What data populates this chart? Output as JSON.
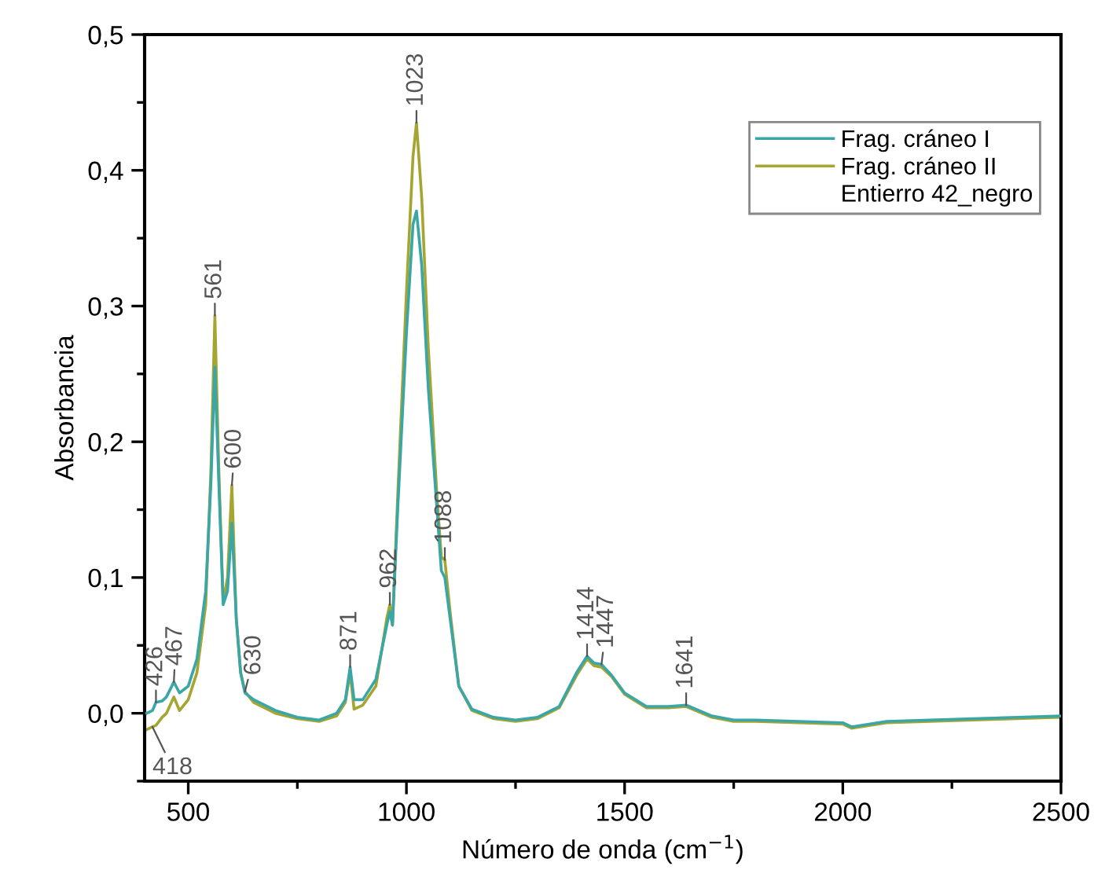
{
  "chart_data": {
    "type": "line",
    "xlabel": "Número de onda (cm$^{−1}$)",
    "ylabel": "Absorbancia",
    "xlim": [
      400,
      2500
    ],
    "ylim": [
      -0.05,
      0.5
    ],
    "xticks": [
      {
        "value": 500,
        "label": "500"
      },
      {
        "value": 750,
        "label": null
      },
      {
        "value": 1000,
        "label": "1000"
      },
      {
        "value": 1250,
        "label": null
      },
      {
        "value": 1500,
        "label": "1500"
      },
      {
        "value": 1750,
        "label": null
      },
      {
        "value": 2000,
        "label": "2000"
      },
      {
        "value": 2250,
        "label": null
      },
      {
        "value": 2500,
        "label": "2500"
      }
    ],
    "yticks": [
      {
        "value": -0.05,
        "label": null
      },
      {
        "value": 0.0,
        "label": "0,0"
      },
      {
        "value": 0.05,
        "label": null
      },
      {
        "value": 0.1,
        "label": "0,1"
      },
      {
        "value": 0.15,
        "label": null
      },
      {
        "value": 0.2,
        "label": "0,2"
      },
      {
        "value": 0.25,
        "label": null
      },
      {
        "value": 0.3,
        "label": "0,3"
      },
      {
        "value": 0.35,
        "label": null
      },
      {
        "value": 0.4,
        "label": "0,4"
      },
      {
        "value": 0.45,
        "label": null
      },
      {
        "value": 0.5,
        "label": "0,5"
      }
    ],
    "x": [
      405,
      418,
      426,
      440,
      450,
      467,
      480,
      500,
      520,
      540,
      552,
      561,
      570,
      580,
      590,
      600,
      610,
      620,
      630,
      650,
      700,
      750,
      800,
      840,
      860,
      871,
      880,
      900,
      930,
      955,
      962,
      968,
      980,
      1000,
      1015,
      1023,
      1035,
      1050,
      1070,
      1080,
      1088,
      1100,
      1120,
      1150,
      1200,
      1250,
      1300,
      1350,
      1390,
      1414,
      1430,
      1447,
      1470,
      1500,
      1550,
      1600,
      1641,
      1700,
      1750,
      1800,
      1900,
      2000,
      2020,
      2100,
      2200,
      2300,
      2400,
      2500
    ],
    "series": [
      {
        "name": "Frag. cráneo I",
        "color": "#3aa6a6",
        "values": [
          0.0,
          0.002,
          0.008,
          0.009,
          0.012,
          0.023,
          0.015,
          0.02,
          0.04,
          0.09,
          0.17,
          0.255,
          0.17,
          0.08,
          0.09,
          0.14,
          0.07,
          0.03,
          0.015,
          0.01,
          0.002,
          -0.003,
          -0.005,
          0.0,
          0.01,
          0.034,
          0.01,
          0.01,
          0.025,
          0.065,
          0.075,
          0.065,
          0.15,
          0.28,
          0.36,
          0.37,
          0.33,
          0.24,
          0.15,
          0.105,
          0.1,
          0.07,
          0.02,
          0.003,
          -0.003,
          -0.005,
          -0.003,
          0.005,
          0.03,
          0.042,
          0.037,
          0.036,
          0.028,
          0.015,
          0.005,
          0.005,
          0.006,
          -0.002,
          -0.005,
          -0.005,
          -0.006,
          -0.007,
          -0.01,
          -0.006,
          -0.005,
          -0.004,
          -0.003,
          -0.002
        ]
      },
      {
        "name": "Frag. cráneo II",
        "color": "#a5a532",
        "values": [
          -0.012,
          -0.01,
          -0.009,
          -0.003,
          0.0,
          0.012,
          0.002,
          0.01,
          0.03,
          0.08,
          0.18,
          0.293,
          0.18,
          0.082,
          0.1,
          0.168,
          0.07,
          0.03,
          0.016,
          0.008,
          0.0,
          -0.004,
          -0.006,
          -0.002,
          0.008,
          0.03,
          0.003,
          0.006,
          0.02,
          0.07,
          0.08,
          0.065,
          0.16,
          0.31,
          0.41,
          0.435,
          0.38,
          0.27,
          0.16,
          0.115,
          0.113,
          0.075,
          0.02,
          0.002,
          -0.004,
          -0.006,
          -0.004,
          0.004,
          0.028,
          0.04,
          0.035,
          0.034,
          0.027,
          0.014,
          0.004,
          0.004,
          0.005,
          -0.003,
          -0.006,
          -0.006,
          -0.007,
          -0.008,
          -0.011,
          -0.007,
          -0.006,
          -0.005,
          -0.004,
          -0.003
        ]
      }
    ],
    "annotations": [
      "Entierro 42_negro",
      {
        "text": "418",
        "x": 418,
        "y": -0.01
      },
      {
        "text": "426",
        "x": 426,
        "y": 0.008
      },
      {
        "text": "467",
        "x": 467,
        "y": 0.023
      },
      {
        "text": "561",
        "x": 561,
        "y": 0.293
      },
      {
        "text": "600",
        "x": 600,
        "y": 0.168
      },
      {
        "text": "630",
        "x": 630,
        "y": 0.016
      },
      {
        "text": "871",
        "x": 871,
        "y": 0.034
      },
      {
        "text": "962",
        "x": 962,
        "y": 0.08
      },
      {
        "text": "1023",
        "x": 1023,
        "y": 0.435
      },
      {
        "text": "1088",
        "x": 1088,
        "y": 0.113
      },
      {
        "text": "1414",
        "x": 1414,
        "y": 0.042
      },
      {
        "text": "1447",
        "x": 1447,
        "y": 0.036
      },
      {
        "text": "1641",
        "x": 1641,
        "y": 0.006
      }
    ],
    "legend": "top right",
    "grid": false,
    "marker": "none",
    "line_style": "solid"
  }
}
